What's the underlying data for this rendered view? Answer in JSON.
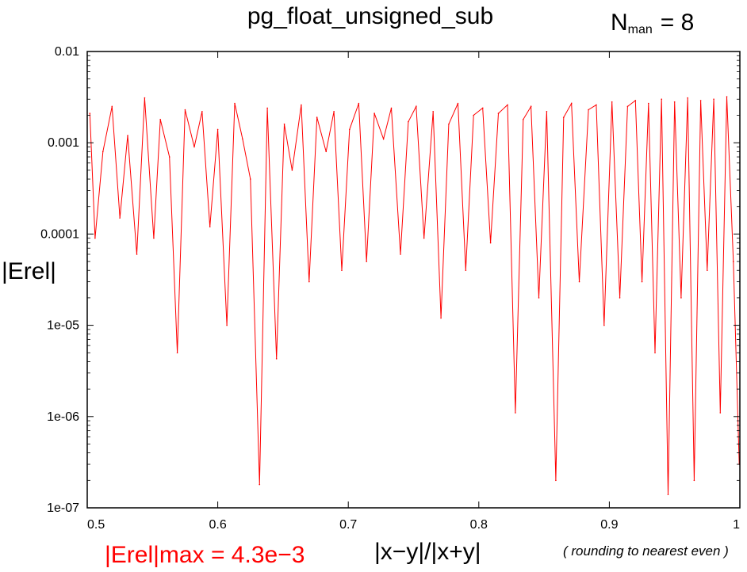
{
  "chart_data": {
    "type": "line",
    "title": "pg_float_unsigned_sub",
    "xlabel": "|x−y|/|x+y|",
    "ylabel": "|Erel|",
    "y_scale": "log",
    "xlim": [
      0.5,
      1.0
    ],
    "ylim": [
      1e-07,
      0.01
    ],
    "x_ticks": [
      {
        "value": 0.5,
        "label": "0.5"
      },
      {
        "value": 0.6,
        "label": "0.6"
      },
      {
        "value": 0.7,
        "label": "0.7"
      },
      {
        "value": 0.8,
        "label": "0.8"
      },
      {
        "value": 0.9,
        "label": "0.9"
      },
      {
        "value": 1.0,
        "label": "1"
      }
    ],
    "y_ticks": [
      {
        "value": 0.01,
        "label": "0.01"
      },
      {
        "value": 0.001,
        "label": "0.001"
      },
      {
        "value": 0.0001,
        "label": "0.0001"
      },
      {
        "value": 1e-05,
        "label": "1e-05"
      },
      {
        "value": 1e-06,
        "label": "1e-06"
      },
      {
        "value": 1e-07,
        "label": "1e-07"
      }
    ],
    "grid": false,
    "series_color": "#ff0000",
    "series": [
      {
        "x": [
          0.502,
          0.506,
          0.512,
          0.519,
          0.525,
          0.531,
          0.538,
          0.544,
          0.551,
          0.556,
          0.563,
          0.569,
          0.575,
          0.582,
          0.588,
          0.594,
          0.6,
          0.607,
          0.613,
          0.619,
          0.625,
          0.632,
          0.638,
          0.645,
          0.651,
          0.657,
          0.664,
          0.67,
          0.676,
          0.683,
          0.689,
          0.695,
          0.701,
          0.708,
          0.714,
          0.72,
          0.727,
          0.733,
          0.74,
          0.746,
          0.752,
          0.758,
          0.765,
          0.771,
          0.777,
          0.784,
          0.79,
          0.796,
          0.803,
          0.809,
          0.815,
          0.822,
          0.828,
          0.834,
          0.84,
          0.846,
          0.852,
          0.859,
          0.865,
          0.871,
          0.877,
          0.884,
          0.89,
          0.896,
          0.902,
          0.908,
          0.914,
          0.92,
          0.925,
          0.93,
          0.935,
          0.94,
          0.945,
          0.95,
          0.955,
          0.96,
          0.965,
          0.97,
          0.975,
          0.98,
          0.985,
          0.99,
          0.995,
          0.9995
        ],
        "values": [
          0.0021,
          9e-05,
          0.0008,
          0.0025,
          0.00015,
          0.0012,
          6e-05,
          0.0031,
          9e-05,
          0.0018,
          0.0007,
          5e-06,
          0.0023,
          0.0009,
          0.0022,
          0.00012,
          0.0014,
          1e-05,
          0.0027,
          0.0011,
          0.0004,
          1.8e-07,
          0.0024,
          4.3e-06,
          0.0016,
          0.0005,
          0.0026,
          3e-05,
          0.0019,
          0.0008,
          0.0022,
          4e-05,
          0.0014,
          0.0027,
          5e-05,
          0.0021,
          0.0011,
          0.0024,
          6e-05,
          0.0017,
          0.0025,
          9e-05,
          0.0022,
          1.2e-05,
          0.0016,
          0.0027,
          4e-05,
          0.002,
          0.0024,
          8e-05,
          0.0021,
          0.0026,
          1.1e-06,
          0.0018,
          0.0025,
          2e-05,
          0.0022,
          2e-07,
          0.0019,
          0.0027,
          3e-05,
          0.0023,
          0.0026,
          1e-05,
          0.0028,
          2e-05,
          0.0025,
          0.0029,
          3e-05,
          0.0027,
          5e-06,
          0.003,
          1.4e-07,
          0.0028,
          2e-05,
          0.0031,
          2e-07,
          0.0029,
          4e-05,
          0.003,
          1.1e-06,
          0.0032,
          5e-05,
          3e-07
        ]
      }
    ]
  },
  "annotations": {
    "nman_main": "N",
    "nman_sub": "man",
    "nman_value": "= 8",
    "erel_max": "|Erel|max = 4.3e−3",
    "rounding": "( rounding to nearest even )"
  }
}
